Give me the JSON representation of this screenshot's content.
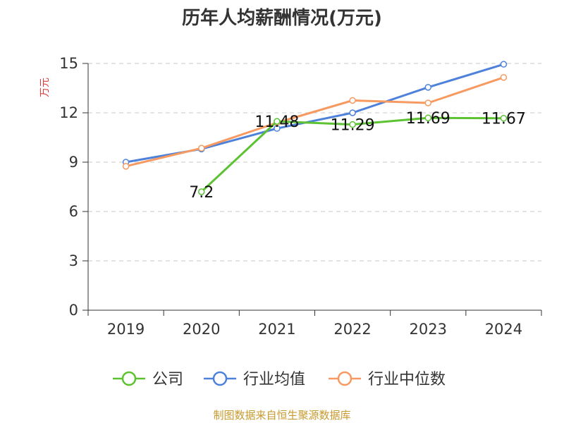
{
  "chart_data": {
    "type": "line",
    "title": "历年人均薪酬情况(万元)",
    "ylabel": "万元",
    "xlabel": "",
    "ylim": [
      0,
      15
    ],
    "yticks": [
      0,
      3,
      6,
      9,
      12,
      15
    ],
    "categories": [
      "2019",
      "2020",
      "2021",
      "2022",
      "2023",
      "2024"
    ],
    "series": [
      {
        "name": "公司",
        "color": "#5dc232",
        "values": [
          null,
          7.2,
          11.48,
          11.29,
          11.69,
          11.67
        ],
        "labels": [
          "",
          "7.2",
          "11.48",
          "11.29",
          "11.69",
          "11.67"
        ]
      },
      {
        "name": "行业均值",
        "color": "#4e82da",
        "values": [
          9.0,
          9.8,
          11.05,
          12.0,
          13.55,
          14.95
        ]
      },
      {
        "name": "行业中位数",
        "color": "#f79a62",
        "values": [
          8.75,
          9.85,
          11.4,
          12.75,
          12.6,
          14.15
        ]
      }
    ],
    "grid": true,
    "legend": "bottom-center"
  },
  "source": "制图数据来自恒生聚源数据库"
}
